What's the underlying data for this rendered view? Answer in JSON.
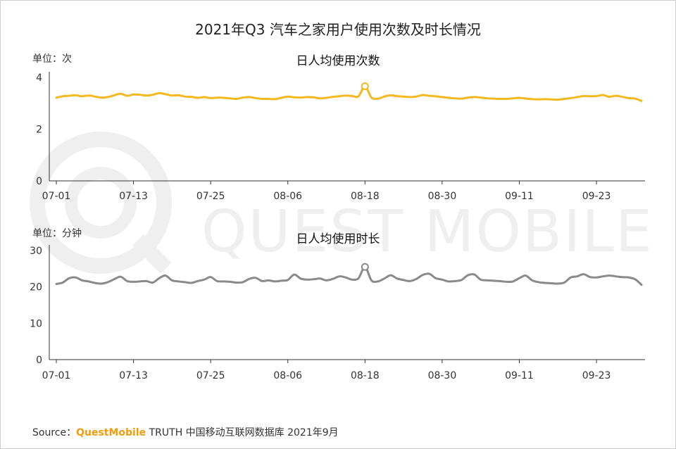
{
  "title": "2021年Q3 汽车之家用户使用次数及时长情况",
  "watermark": "QUEST MOBILE",
  "source": {
    "label": "Source：",
    "brand": "QuestMobile",
    "rest": "TRUTH 中国移动互联网数据库 2021年9月"
  },
  "colors": {
    "series1": "#f5b81f",
    "series2": "#8a8a8a",
    "axis": "#333333",
    "brand": "#f29c0c"
  },
  "chart_data": [
    {
      "type": "line",
      "title": "日人均使用次数",
      "unit_label": "单位：次",
      "ylim": [
        0,
        4
      ],
      "yticks": [
        0,
        2,
        4
      ],
      "xtick_labels": [
        "07-01",
        "07-13",
        "07-25",
        "08-06",
        "08-18",
        "08-30",
        "09-11",
        "09-23"
      ],
      "grid": false,
      "highlight_index": 48,
      "series": [
        {
          "color": "#f5b81f",
          "values": [
            3.22,
            3.27,
            3.29,
            3.31,
            3.27,
            3.3,
            3.26,
            3.22,
            3.24,
            3.31,
            3.37,
            3.29,
            3.34,
            3.33,
            3.3,
            3.33,
            3.39,
            3.35,
            3.3,
            3.31,
            3.26,
            3.25,
            3.21,
            3.24,
            3.2,
            3.22,
            3.21,
            3.19,
            3.17,
            3.22,
            3.24,
            3.2,
            3.17,
            3.17,
            3.16,
            3.21,
            3.26,
            3.23,
            3.22,
            3.24,
            3.23,
            3.19,
            3.21,
            3.25,
            3.27,
            3.3,
            3.28,
            3.27,
            3.66,
            3.22,
            3.18,
            3.26,
            3.31,
            3.27,
            3.26,
            3.24,
            3.26,
            3.32,
            3.29,
            3.27,
            3.24,
            3.21,
            3.19,
            3.18,
            3.22,
            3.24,
            3.22,
            3.19,
            3.18,
            3.17,
            3.17,
            3.19,
            3.21,
            3.18,
            3.16,
            3.15,
            3.16,
            3.15,
            3.14,
            3.17,
            3.2,
            3.24,
            3.28,
            3.27,
            3.28,
            3.32,
            3.25,
            3.29,
            3.25,
            3.2,
            3.18,
            3.09
          ]
        }
      ]
    },
    {
      "type": "line",
      "title": "日人均使用时长",
      "unit_label": "单位：分钟",
      "ylim": [
        0,
        30
      ],
      "yticks": [
        0,
        10,
        20,
        30
      ],
      "xtick_labels": [
        "07-01",
        "07-13",
        "07-25",
        "08-06",
        "08-18",
        "08-30",
        "09-11",
        "09-23"
      ],
      "grid": false,
      "highlight_index": 48,
      "series": [
        {
          "color": "#8a8a8a",
          "values": [
            20.8,
            21.2,
            22.4,
            22.6,
            21.8,
            21.5,
            21.1,
            20.9,
            21.3,
            22.1,
            22.8,
            21.6,
            21.4,
            21.5,
            21.6,
            21.2,
            22.4,
            23.1,
            21.8,
            21.5,
            21.3,
            21.1,
            21.6,
            22.0,
            22.7,
            21.6,
            21.5,
            21.4,
            21.2,
            21.3,
            22.2,
            22.5,
            21.6,
            21.8,
            21.5,
            21.7,
            21.9,
            23.4,
            22.3,
            22.0,
            22.1,
            22.3,
            21.8,
            22.2,
            22.9,
            22.6,
            22.0,
            22.4,
            25.5,
            21.8,
            21.5,
            22.3,
            23.2,
            22.3,
            21.9,
            21.6,
            22.2,
            23.3,
            23.6,
            22.4,
            22.0,
            21.5,
            21.6,
            21.9,
            23.2,
            23.4,
            22.0,
            21.8,
            21.7,
            21.6,
            21.4,
            21.5,
            22.4,
            23.1,
            21.8,
            21.3,
            21.1,
            21.0,
            20.9,
            21.2,
            22.6,
            22.9,
            23.5,
            22.7,
            22.6,
            22.9,
            23.1,
            22.9,
            22.7,
            22.6,
            22.1,
            20.6
          ]
        }
      ]
    }
  ]
}
